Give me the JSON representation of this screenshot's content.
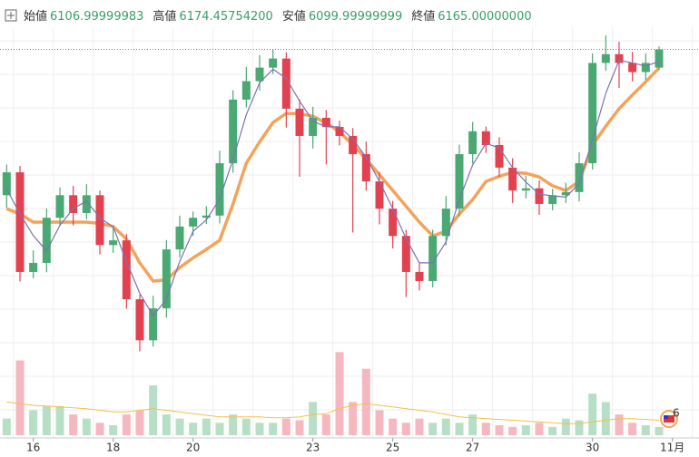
{
  "chart_data": {
    "type": "candlestick",
    "ohlc_labels": [
      {
        "name": "始値",
        "value": "6106.99999983"
      },
      {
        "name": "高値",
        "value": "6174.45754200"
      },
      {
        "name": "安値",
        "value": "6099.99999999"
      },
      {
        "name": "終値",
        "value": "6165.00000000"
      }
    ],
    "badge": "6",
    "up_color": "#4aa873",
    "down_color": "#e2414f",
    "volume_up_color": "#b7dfc6",
    "volume_down_color": "#f5b8c0",
    "open": [
      5700,
      5773,
      5455,
      5484,
      5628,
      5700,
      5643,
      5700,
      5541,
      5556,
      5368,
      5237,
      5339,
      5527,
      5600,
      5628,
      5635,
      5802,
      6005,
      6064,
      6107,
      6136,
      5976,
      5889,
      5947,
      5918,
      5889,
      5831,
      5744,
      5657,
      5570,
      5455,
      5426,
      5570,
      5657,
      5831,
      5904,
      5860,
      5788,
      5715,
      5722,
      5672,
      5700,
      5710,
      5802,
      6122,
      6150,
      6122,
      6093,
      6106.99999983
    ],
    "high": [
      5798,
      5793,
      5524,
      5658,
      5725,
      5730,
      5735,
      5715,
      5596,
      5576,
      5383,
      5379,
      5557,
      5635,
      5648,
      5665,
      5842,
      6035,
      6109,
      6147,
      6166,
      6156,
      6006,
      5982,
      5972,
      5938,
      5914,
      5871,
      5774,
      5682,
      5590,
      5485,
      5590,
      5697,
      5861,
      5934,
      5919,
      5885,
      5818,
      5762,
      5747,
      5720,
      5740,
      5837,
      6152,
      6210,
      6190,
      6157,
      6152,
      6174.457542
    ],
    "low": [
      5660,
      5425,
      5435,
      5454,
      5603,
      5603,
      5623,
      5511,
      5516,
      5338,
      5202,
      5217,
      5309,
      5502,
      5570,
      5608,
      5610,
      5772,
      5980,
      6034,
      6087,
      5916,
      5759,
      5849,
      5798,
      5859,
      5581,
      5714,
      5607,
      5530,
      5375,
      5396,
      5406,
      5540,
      5632,
      5801,
      5835,
      5758,
      5675,
      5690,
      5637,
      5652,
      5675,
      5680,
      5782,
      6097,
      6042,
      6063,
      6068,
      6099.99999999
    ],
    "close": [
      5773,
      5455,
      5484,
      5628,
      5700,
      5643,
      5700,
      5541,
      5556,
      5368,
      5237,
      5339,
      5527,
      5600,
      5628,
      5635,
      5802,
      6005,
      6064,
      6107,
      6136,
      5976,
      5889,
      5947,
      5918,
      5889,
      5831,
      5744,
      5657,
      5570,
      5455,
      5426,
      5570,
      5657,
      5831,
      5904,
      5860,
      5788,
      5715,
      5722,
      5672,
      5700,
      5710,
      5802,
      6122,
      6150,
      6122,
      6093,
      6122,
      6165
    ],
    "ma_fast": {
      "color": "#7d72b3",
      "values": [
        5720,
        5640,
        5571,
        5522,
        5604,
        5657,
        5681,
        5628,
        5599,
        5488,
        5387,
        5315,
        5368,
        5489,
        5585,
        5621,
        5688,
        5814,
        5957,
        6059,
        6102,
        6073,
        6000,
        5937,
        5918,
        5918,
        5879,
        5821,
        5744,
        5657,
        5561,
        5484,
        5484,
        5551,
        5686,
        5797,
        5865,
        5851,
        5788,
        5742,
        5703,
        5698,
        5694,
        5737,
        5878,
        6025,
        6131,
        6122,
        6112,
        6127
      ]
    },
    "ma_slow": {
      "color": "#f3a35b",
      "values": [
        5657,
        5640,
        5614,
        5614,
        5614,
        5614,
        5614,
        5610,
        5600,
        5560,
        5484,
        5426,
        5430,
        5469,
        5500,
        5527,
        5556,
        5672,
        5802,
        5870,
        5932,
        5961,
        5960,
        5952,
        5930,
        5903,
        5860,
        5816,
        5765,
        5715,
        5665,
        5614,
        5570,
        5585,
        5640,
        5686,
        5744,
        5760,
        5773,
        5770,
        5758,
        5730,
        5715,
        5744,
        5860,
        5920,
        5976,
        6020,
        6062,
        6106
      ]
    },
    "volume": [
      20,
      90,
      30,
      35,
      35,
      25,
      20,
      15,
      12,
      25,
      30,
      60,
      25,
      20,
      15,
      20,
      15,
      25,
      20,
      15,
      15,
      20,
      18,
      40,
      25,
      100,
      40,
      80,
      30,
      20,
      15,
      20,
      15,
      20,
      15,
      25,
      15,
      12,
      10,
      12,
      15,
      10,
      20,
      18,
      50,
      40,
      25,
      15,
      12,
      10
    ],
    "volume_ma": {
      "color": "#f6c04a",
      "values": [
        40,
        38,
        36,
        35,
        34,
        33,
        32,
        30,
        28,
        28,
        30,
        32,
        30,
        28,
        26,
        24,
        22,
        22,
        22,
        22,
        21,
        21,
        22,
        25,
        26,
        32,
        36,
        38,
        36,
        34,
        32,
        30,
        28,
        25,
        22,
        21,
        20,
        19,
        18,
        17,
        16,
        15,
        14,
        14,
        16,
        18,
        20,
        20,
        19,
        18
      ]
    },
    "ylim": [
      5180,
      6265
    ],
    "vlim": [
      0,
      120
    ],
    "xlim": [
      -0.5,
      52
    ],
    "xticks": [
      {
        "value": 2,
        "label": "16"
      },
      {
        "value": 8,
        "label": "18"
      },
      {
        "value": 14,
        "label": "20"
      },
      {
        "value": 23,
        "label": "23"
      },
      {
        "value": 29,
        "label": "25"
      },
      {
        "value": 35,
        "label": "27"
      },
      {
        "value": 44,
        "label": "30"
      },
      {
        "value": 50,
        "label": "11月"
      }
    ]
  }
}
